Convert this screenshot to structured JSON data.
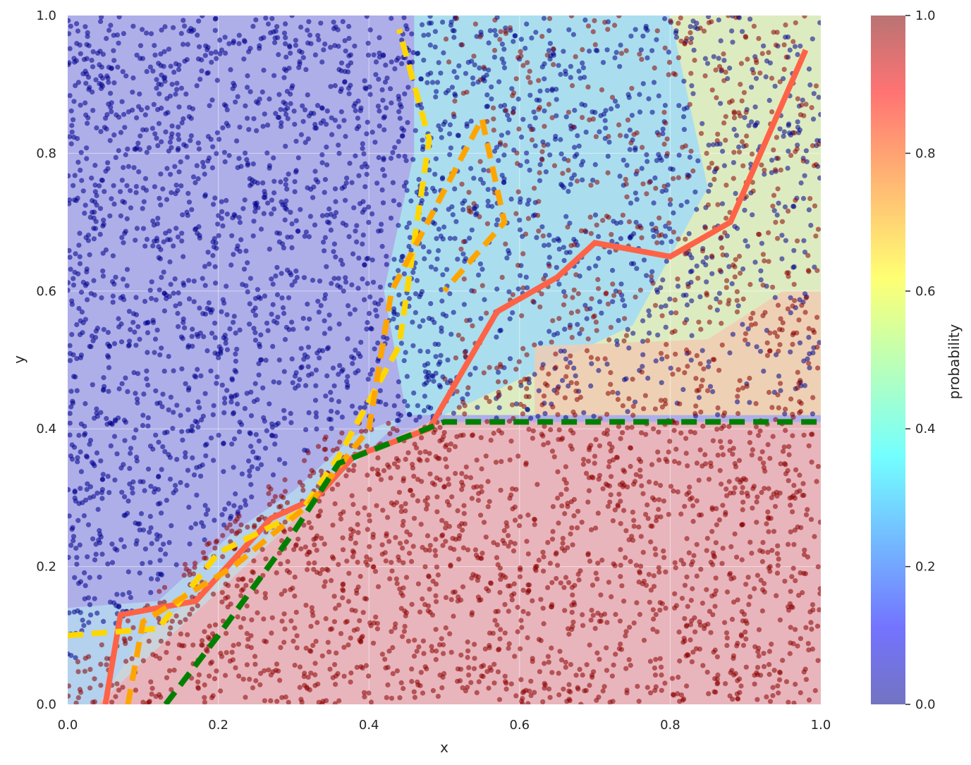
{
  "chart_data": {
    "type": "scatter",
    "xlabel": "x",
    "ylabel": "y",
    "xlim": [
      0.0,
      1.0
    ],
    "ylim": [
      0.0,
      1.0
    ],
    "xticks": [
      "0.0",
      "0.2",
      "0.4",
      "0.6",
      "0.8",
      "1.0"
    ],
    "yticks": [
      "0.0",
      "0.2",
      "0.4",
      "0.6",
      "0.8",
      "1.0"
    ],
    "grid": true,
    "background": "filled probability contour (jet colormap, alpha 0.5)",
    "colorbar": {
      "label": "probability",
      "range": [
        0.0,
        1.0
      ],
      "ticks": [
        "0.0",
        "0.2",
        "0.4",
        "0.6",
        "0.8",
        "1.0"
      ],
      "colormap": "jet"
    },
    "class_regions": {
      "class_0_color": "#00008b",
      "class_1_color": "#8b0000",
      "boundary_description": "class 1 where y < 0.41 and y < x + ~0.05; noisy mixed region in upper right"
    },
    "point_counts_estimate": {
      "class_0": 2400,
      "class_1": 2600
    },
    "contour_lines": [
      {
        "color": "#ff6347",
        "style": "solid",
        "approx_path": [
          [
            0.05,
            0.0
          ],
          [
            0.07,
            0.13
          ],
          [
            0.17,
            0.15
          ],
          [
            0.27,
            0.27
          ],
          [
            0.33,
            0.3
          ],
          [
            0.38,
            0.36
          ],
          [
            0.48,
            0.4
          ],
          [
            0.57,
            0.57
          ],
          [
            0.65,
            0.62
          ],
          [
            0.7,
            0.67
          ],
          [
            0.8,
            0.65
          ],
          [
            0.88,
            0.7
          ],
          [
            0.92,
            0.8
          ],
          [
            0.98,
            0.95
          ]
        ]
      },
      {
        "color": "#ffd700",
        "style": "dashed",
        "approx_path": [
          [
            0.0,
            0.1
          ],
          [
            0.12,
            0.11
          ],
          [
            0.2,
            0.22
          ],
          [
            0.31,
            0.28
          ],
          [
            0.36,
            0.36
          ],
          [
            0.44,
            0.52
          ],
          [
            0.48,
            0.82
          ],
          [
            0.44,
            0.98
          ]
        ]
      },
      {
        "color": "#ffa500",
        "style": "dashed",
        "approx_path": [
          [
            0.08,
            0.0
          ],
          [
            0.1,
            0.12
          ],
          [
            0.22,
            0.2
          ],
          [
            0.32,
            0.29
          ],
          [
            0.4,
            0.4
          ],
          [
            0.43,
            0.6
          ],
          [
            0.55,
            0.85
          ],
          [
            0.58,
            0.7
          ],
          [
            0.5,
            0.6
          ]
        ]
      },
      {
        "color": "#008000",
        "style": "dashed",
        "approx_path": [
          [
            0.13,
            0.0
          ],
          [
            0.2,
            0.1
          ],
          [
            0.3,
            0.25
          ],
          [
            0.36,
            0.35
          ],
          [
            0.43,
            0.38
          ],
          [
            0.5,
            0.41
          ],
          [
            1.0,
            0.41
          ]
        ]
      }
    ],
    "colors": {
      "class_0_region": "#aeaee9",
      "class_1_region": "#e8b5bc",
      "grid": "#ffffff"
    }
  }
}
